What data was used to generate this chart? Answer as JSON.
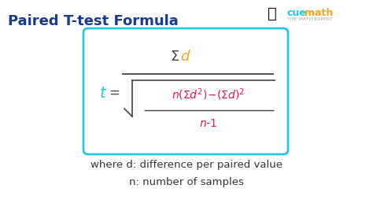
{
  "title": "Paired T-test Formula",
  "title_color": "#1a3a8a",
  "title_fontsize": 13,
  "bg_color": "#ffffff",
  "box_color": "#29c5e6",
  "t_color": "#29c5e6",
  "sigma_color": "#555555",
  "d_numerator_color": "#f5a623",
  "denominator_color": "#e8194b",
  "where_text_1": "where d: difference per paired value",
  "where_text_2": "n: number of samples",
  "where_color": "#333333",
  "where_fontsize": 9.5,
  "cuemath_color_cue": "#29c5e6",
  "cuemath_color_math": "#f5a623",
  "cuemath_sub": "THE MATH EXPERT"
}
